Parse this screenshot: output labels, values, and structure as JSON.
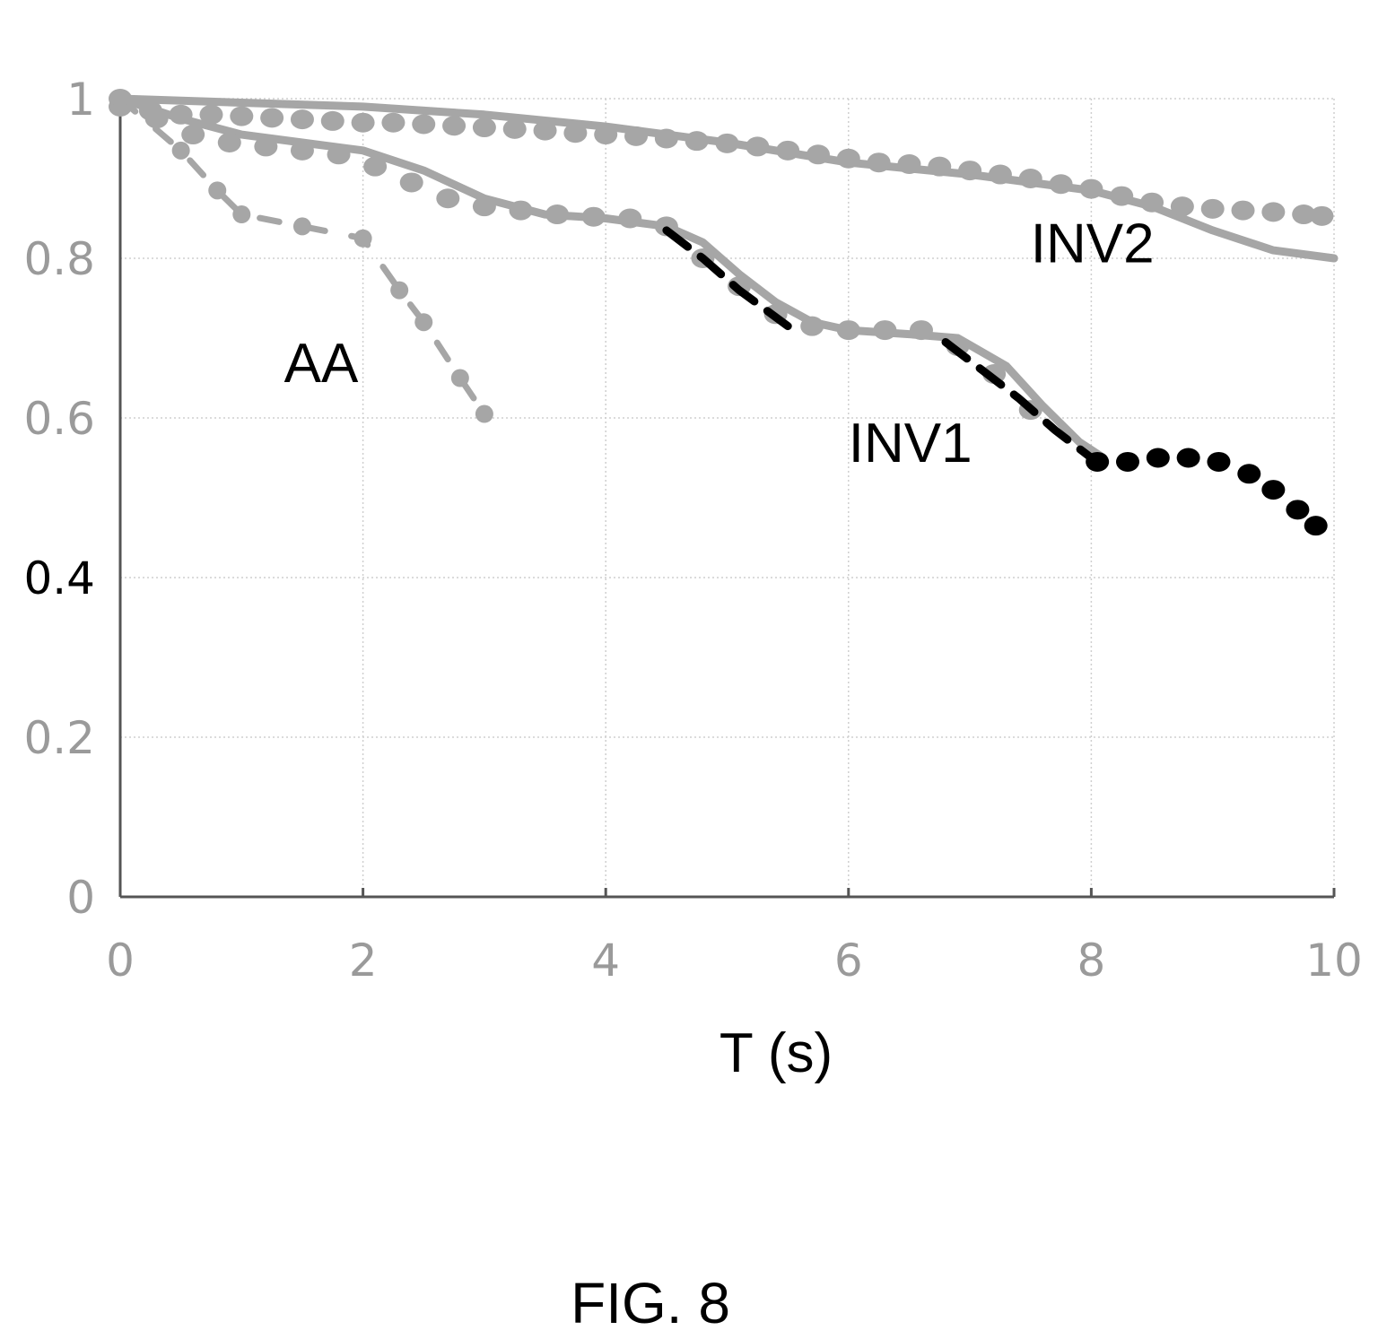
{
  "figure_caption": "FIG. 8",
  "chart_data": {
    "type": "line",
    "xlabel": "T (s)",
    "ylabel": "",
    "xlim": [
      0,
      10
    ],
    "ylim": [
      0,
      1
    ],
    "xticks": [
      {
        "v": 0,
        "label": "0"
      },
      {
        "v": 2,
        "label": "2"
      },
      {
        "v": 4,
        "label": "4"
      },
      {
        "v": 6,
        "label": "6"
      },
      {
        "v": 8,
        "label": "8"
      },
      {
        "v": 10,
        "label": "10"
      }
    ],
    "yticks": [
      {
        "v": 0,
        "label": "0"
      },
      {
        "v": 0.2,
        "label": "0.2"
      },
      {
        "v": 0.4,
        "label": "0.4"
      },
      {
        "v": 0.6,
        "label": "0.6"
      },
      {
        "v": 0.8,
        "label": "0.8"
      },
      {
        "v": 1,
        "label": "1"
      }
    ],
    "grid": true,
    "series": [
      {
        "name": "INV2",
        "style": "solid",
        "color": "#a6a6a6",
        "x": [
          0,
          1,
          2,
          3,
          4,
          5,
          6,
          7,
          8,
          8.5,
          9,
          9.5,
          10
        ],
        "y": [
          1.0,
          0.995,
          0.99,
          0.98,
          0.965,
          0.945,
          0.92,
          0.905,
          0.885,
          0.865,
          0.835,
          0.81,
          0.8
        ]
      },
      {
        "name": "INV2",
        "style": "dotted",
        "color": "#a6a6a6",
        "x": [
          0,
          0.25,
          0.5,
          0.75,
          1,
          1.25,
          1.5,
          1.75,
          2,
          2.25,
          2.5,
          2.75,
          3,
          3.25,
          3.5,
          3.75,
          4,
          4.25,
          4.5,
          4.75,
          5,
          5.25,
          5.5,
          5.75,
          6,
          6.25,
          6.5,
          6.75,
          7,
          7.25,
          7.5,
          7.75,
          8,
          8.25,
          8.5,
          8.75,
          9,
          9.25,
          9.5,
          9.75,
          9.9
        ],
        "y": [
          0.99,
          0.985,
          0.98,
          0.98,
          0.978,
          0.976,
          0.974,
          0.972,
          0.97,
          0.97,
          0.968,
          0.966,
          0.964,
          0.962,
          0.96,
          0.957,
          0.955,
          0.953,
          0.95,
          0.947,
          0.944,
          0.94,
          0.935,
          0.93,
          0.925,
          0.92,
          0.918,
          0.915,
          0.91,
          0.905,
          0.9,
          0.893,
          0.887,
          0.878,
          0.87,
          0.865,
          0.862,
          0.86,
          0.858,
          0.855,
          0.853
        ]
      },
      {
        "name": "INV1",
        "style": "solid",
        "color": "#a6a6a6",
        "x": [
          0,
          0.5,
          1,
          1.5,
          2,
          2.5,
          3,
          3.5,
          4,
          4.5,
          4.8,
          5.1,
          5.4,
          5.7,
          6,
          6.5,
          6.9,
          7.3,
          7.6,
          7.9,
          8.1
        ],
        "y": [
          1.0,
          0.975,
          0.955,
          0.945,
          0.935,
          0.91,
          0.875,
          0.855,
          0.85,
          0.84,
          0.82,
          0.78,
          0.745,
          0.72,
          0.71,
          0.705,
          0.7,
          0.665,
          0.615,
          0.57,
          0.55
        ]
      },
      {
        "name": "INV1",
        "style": "dotted",
        "color": "#a6a6a6",
        "x": [
          0,
          0.3,
          0.6,
          0.9,
          1.2,
          1.5,
          1.8,
          2.1,
          2.4,
          2.7,
          3.0,
          3.3,
          3.6,
          3.9,
          4.2,
          4.5,
          4.8,
          5.1,
          5.4,
          5.7,
          6.0,
          6.3,
          6.6,
          6.9,
          7.2,
          7.5
        ],
        "y": [
          1.0,
          0.975,
          0.955,
          0.945,
          0.94,
          0.935,
          0.93,
          0.915,
          0.895,
          0.875,
          0.865,
          0.86,
          0.855,
          0.852,
          0.85,
          0.84,
          0.8,
          0.765,
          0.73,
          0.715,
          0.71,
          0.71,
          0.71,
          0.69,
          0.655,
          0.61
        ]
      },
      {
        "name": "",
        "style": "dashed",
        "color": "#000000",
        "x": [
          4.5,
          4.8,
          5.1,
          5.5
        ],
        "y": [
          0.835,
          0.8,
          0.76,
          0.715
        ]
      },
      {
        "name": "",
        "style": "dashed",
        "color": "#000000",
        "x": [
          6.8,
          7.1,
          7.4,
          7.7,
          8.0
        ],
        "y": [
          0.695,
          0.66,
          0.625,
          0.585,
          0.55
        ]
      },
      {
        "name": "",
        "style": "dotted",
        "color": "#000000",
        "x": [
          8.05,
          8.3,
          8.55,
          8.8,
          9.05,
          9.3,
          9.5,
          9.7,
          9.85
        ],
        "y": [
          0.545,
          0.545,
          0.55,
          0.55,
          0.545,
          0.53,
          0.51,
          0.485,
          0.465
        ]
      },
      {
        "name": "AA",
        "style": "dash-dot",
        "color": "#a6a6a6",
        "x": [
          0,
          0.5,
          0.8,
          1.0,
          1.5,
          2.0,
          2.3,
          2.5,
          2.8,
          3.0
        ],
        "y": [
          1.0,
          0.935,
          0.885,
          0.855,
          0.84,
          0.825,
          0.76,
          0.72,
          0.65,
          0.605
        ]
      }
    ],
    "labels": [
      {
        "text": "INV2",
        "x": 7.5,
        "y": 0.795
      },
      {
        "text": "INV1",
        "x": 6.0,
        "y": 0.545
      },
      {
        "text": "AA",
        "x": 1.35,
        "y": 0.645
      }
    ]
  }
}
